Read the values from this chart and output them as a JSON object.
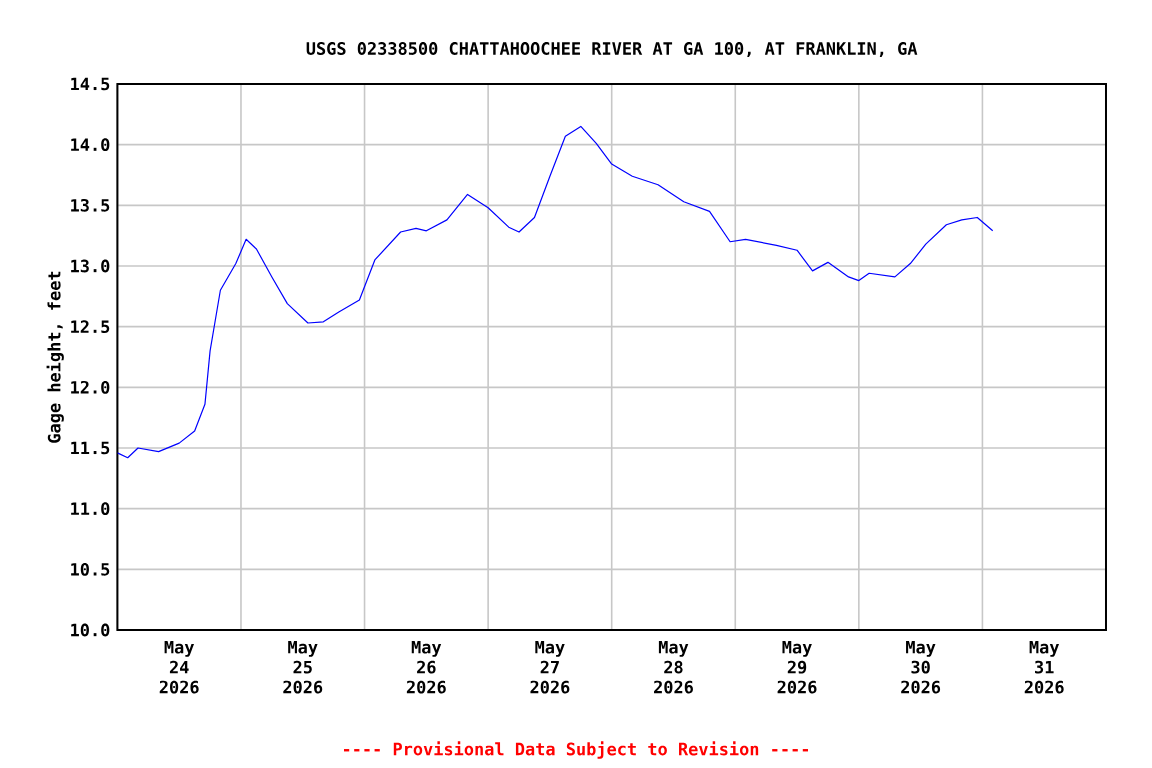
{
  "chart_data": {
    "type": "line",
    "title": "USGS 02338500 CHATTAHOOCHEE RIVER AT GA 100, AT FRANKLIN, GA",
    "ylabel": "Gage height, feet",
    "annotations": [
      "---- Provisional Data Subject to Revision ----"
    ],
    "x": [
      "2026-05-24T00:00",
      "2026-05-24T02:00",
      "2026-05-24T04:00",
      "2026-05-24T08:00",
      "2026-05-24T12:00",
      "2026-05-24T15:00",
      "2026-05-24T17:00",
      "2026-05-24T18:00",
      "2026-05-24T20:00",
      "2026-05-24T23:00",
      "2026-05-25T01:00",
      "2026-05-25T03:00",
      "2026-05-25T06:00",
      "2026-05-25T09:00",
      "2026-05-25T13:00",
      "2026-05-25T16:00",
      "2026-05-25T19:00",
      "2026-05-25T23:00",
      "2026-05-26T02:00",
      "2026-05-26T07:00",
      "2026-05-26T10:00",
      "2026-05-26T12:00",
      "2026-05-26T16:00",
      "2026-05-26T20:00",
      "2026-05-27T00:00",
      "2026-05-27T04:00",
      "2026-05-27T06:00",
      "2026-05-27T09:00",
      "2026-05-27T12:00",
      "2026-05-27T15:00",
      "2026-05-27T18:00",
      "2026-05-27T21:00",
      "2026-05-28T00:00",
      "2026-05-28T04:00",
      "2026-05-28T09:00",
      "2026-05-28T14:00",
      "2026-05-28T19:00",
      "2026-05-28T23:00",
      "2026-05-29T02:00",
      "2026-05-29T08:00",
      "2026-05-29T12:00",
      "2026-05-29T15:00",
      "2026-05-29T18:00",
      "2026-05-29T22:00",
      "2026-05-30T00:00",
      "2026-05-30T02:00",
      "2026-05-30T07:00",
      "2026-05-30T10:00",
      "2026-05-30T13:00",
      "2026-05-30T17:00",
      "2026-05-30T20:00",
      "2026-05-30T23:00",
      "2026-05-31T02:00"
    ],
    "series": [
      {
        "color": "#0000ff",
        "values": [
          11.46,
          11.42,
          11.5,
          11.47,
          11.54,
          11.64,
          11.86,
          12.3,
          12.8,
          13.02,
          13.22,
          13.14,
          12.91,
          12.69,
          12.53,
          12.54,
          12.62,
          12.72,
          13.05,
          13.28,
          13.31,
          13.29,
          13.38,
          13.59,
          13.48,
          13.32,
          13.28,
          13.4,
          13.74,
          14.07,
          14.15,
          14.01,
          13.84,
          13.74,
          13.67,
          13.53,
          13.45,
          13.2,
          13.22,
          13.17,
          13.13,
          12.96,
          13.03,
          12.91,
          12.88,
          12.94,
          12.91,
          13.02,
          13.18,
          13.34,
          13.38,
          13.4,
          13.29
        ]
      }
    ],
    "xlim": [
      "2026-05-24T00:00",
      "2026-06-01T00:00"
    ],
    "xticks": [
      {
        "value": "2026-05-24T00:00",
        "label": null
      },
      {
        "value": "2026-05-24T12:00",
        "label": "May 24 2026"
      },
      {
        "value": "2026-05-25T00:00",
        "label": null
      },
      {
        "value": "2026-05-25T12:00",
        "label": "May 25 2026"
      },
      {
        "value": "2026-05-26T00:00",
        "label": null
      },
      {
        "value": "2026-05-26T12:00",
        "label": "May 26 2026"
      },
      {
        "value": "2026-05-27T00:00",
        "label": null
      },
      {
        "value": "2026-05-27T12:00",
        "label": "May 27 2026"
      },
      {
        "value": "2026-05-28T00:00",
        "label": null
      },
      {
        "value": "2026-05-28T12:00",
        "label": "May 28 2026"
      },
      {
        "value": "2026-05-29T00:00",
        "label": null
      },
      {
        "value": "2026-05-29T12:00",
        "label": "May 29 2026"
      },
      {
        "value": "2026-05-30T00:00",
        "label": null
      },
      {
        "value": "2026-05-30T12:00",
        "label": "May 30 2026"
      },
      {
        "value": "2026-05-31T00:00",
        "label": null
      },
      {
        "value": "2026-05-31T12:00",
        "label": "May 31 2026"
      },
      {
        "value": "2026-06-01T00:00",
        "label": null
      }
    ],
    "ylim": [
      10.0,
      14.5
    ],
    "yticks": [
      {
        "value": 10.0,
        "label": "10.0"
      },
      {
        "value": 10.5,
        "label": "10.5"
      },
      {
        "value": 11.0,
        "label": "11.0"
      },
      {
        "value": 11.5,
        "label": "11.5"
      },
      {
        "value": 12.0,
        "label": "12.0"
      },
      {
        "value": 12.5,
        "label": "12.5"
      },
      {
        "value": 13.0,
        "label": "13.0"
      },
      {
        "value": 13.5,
        "label": "13.5"
      },
      {
        "value": 14.0,
        "label": "14.0"
      },
      {
        "value": 14.5,
        "label": "14.5"
      }
    ],
    "grid": true
  }
}
